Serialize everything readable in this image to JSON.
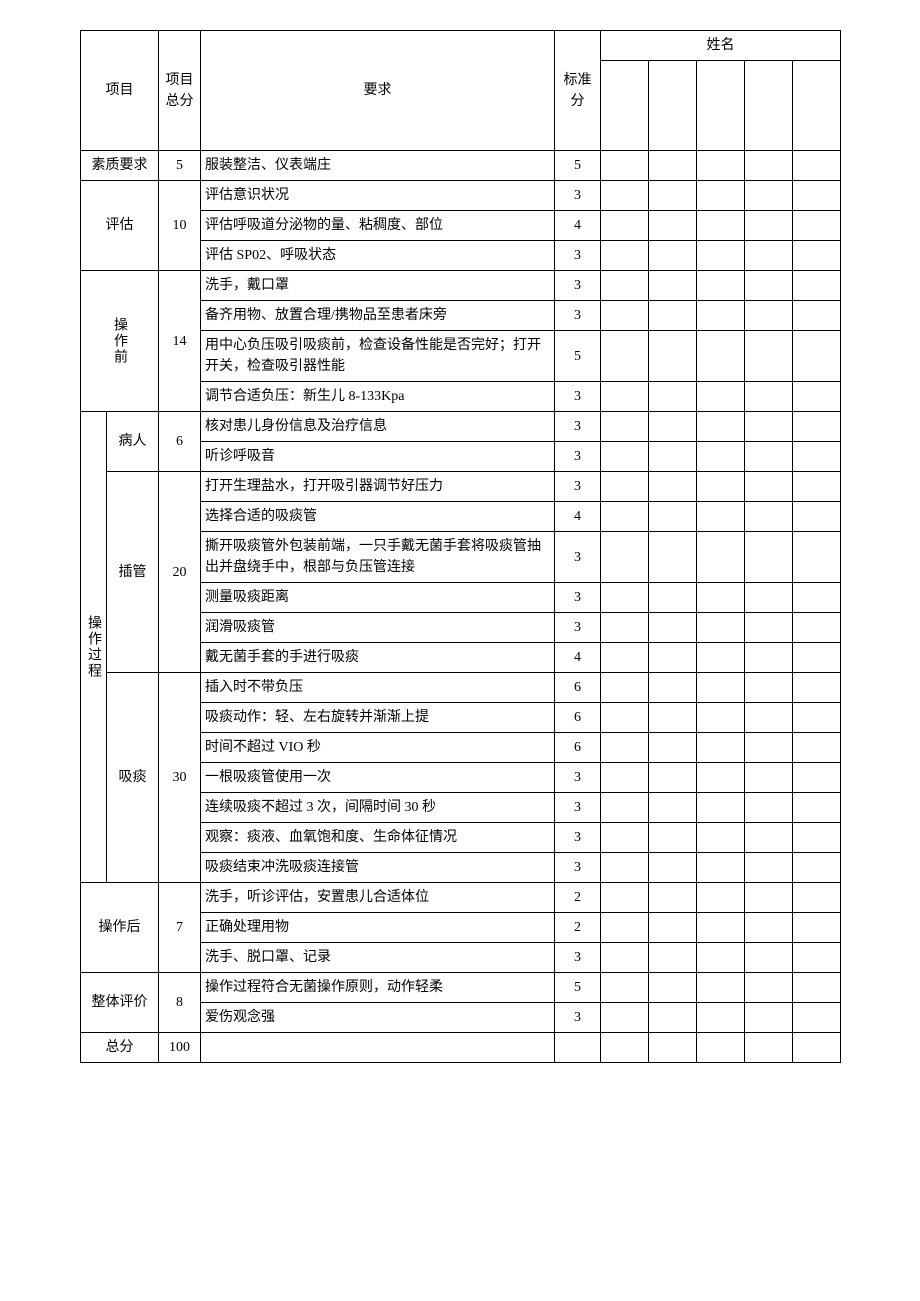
{
  "table": {
    "header": {
      "col_item": "项目",
      "col_total": "项目总分",
      "col_req": "要求",
      "col_std": "标准分",
      "col_name": "姓名"
    },
    "columns": {
      "widths": [
        26,
        52,
        42,
        354,
        46,
        48,
        48,
        48,
        48,
        48
      ],
      "score_col_count": 5
    },
    "sections": [
      {
        "label": "素质要求",
        "total": 5,
        "colspan_label": 2,
        "rows": [
          {
            "req": "服装整洁、仪表端庄",
            "std": 5
          }
        ]
      },
      {
        "label": "评估",
        "total": 10,
        "colspan_label": 2,
        "rows": [
          {
            "req": "评估意识状况",
            "std": 3
          },
          {
            "req": "评估呼吸道分泌物的量、粘稠度、部位",
            "std": 4
          },
          {
            "req": "评估 SP02、呼吸状态",
            "std": 3
          }
        ]
      },
      {
        "label": "操作前",
        "total": 14,
        "colspan_label": 2,
        "vertical": true,
        "rows": [
          {
            "req": "洗手，戴口罩",
            "std": 3
          },
          {
            "req": "备齐用物、放置合理/携物品至患者床旁",
            "std": 3
          },
          {
            "req": "用中心负压吸引吸痰前，检查设备性能是否完好；打开开关，检查吸引器性能",
            "std": 5
          },
          {
            "req": "调节合适负压：新生儿 8-133Kpa",
            "std": 3
          }
        ]
      },
      {
        "label": "操作过程",
        "vertical": true,
        "colspan_label": 1,
        "subs": [
          {
            "sublabel": "病人",
            "total": 6,
            "rows": [
              {
                "req": "核对患儿身份信息及治疗信息",
                "std": 3
              },
              {
                "req": "听诊呼吸音",
                "std": 3
              }
            ]
          },
          {
            "sublabel": "插管",
            "total": 20,
            "rows": [
              {
                "req": "打开生理盐水，打开吸引器调节好压力",
                "std": 3
              },
              {
                "req": "选择合适的吸痰管",
                "std": 4
              },
              {
                "req": "撕开吸痰管外包装前端，一只手戴无菌手套将吸痰管抽出并盘绕手中，根部与负压管连接",
                "std": 3
              },
              {
                "req": "测量吸痰距离",
                "std": 3
              },
              {
                "req": "润滑吸痰管",
                "std": 3
              },
              {
                "req": "戴无菌手套的手进行吸痰",
                "std": 4
              }
            ]
          },
          {
            "sublabel": "吸痰",
            "total": 30,
            "rows": [
              {
                "req": "插入时不带负压",
                "std": 6
              },
              {
                "req": "吸痰动作：轻、左右旋转并渐渐上提",
                "std": 6
              },
              {
                "req": "时间不超过 VIO 秒",
                "std": 6
              },
              {
                "req": "一根吸痰管使用一次",
                "std": 3
              },
              {
                "req": "连续吸痰不超过 3 次，间隔时间 30 秒",
                "std": 3
              },
              {
                "req": "观察：痰液、血氧饱和度、生命体征情况",
                "std": 3
              },
              {
                "req": "吸痰结束冲洗吸痰连接管",
                "std": 3
              }
            ]
          }
        ]
      },
      {
        "label": "操作后",
        "total": 7,
        "colspan_label": 2,
        "rows": [
          {
            "req": "洗手，听诊评估，安置患儿合适体位",
            "std": 2
          },
          {
            "req": "正确处理用物",
            "std": 2
          },
          {
            "req": "洗手、脱口罩、记录",
            "std": 3
          }
        ]
      },
      {
        "label": "整体评价",
        "total": 8,
        "colspan_label": 2,
        "rows": [
          {
            "req": "操作过程符合无菌操作原则，动作轻柔",
            "std": 5
          },
          {
            "req": "爱伤观念强",
            "std": 3
          }
        ]
      }
    ],
    "footer": {
      "label": "总分",
      "total": 100
    }
  },
  "colors": {
    "border": "#000000",
    "text": "#000000",
    "background": "#ffffff"
  },
  "typography": {
    "font_family": "SimSun",
    "font_size_pt": 11
  }
}
